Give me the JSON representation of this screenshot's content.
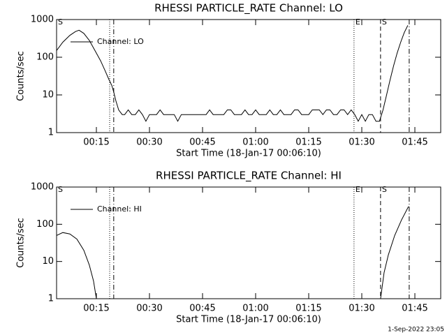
{
  "chart_data": [
    {
      "type": "line",
      "title": "RHESSI PARTICLE_RATE Channel: LO",
      "xlabel": "Start Time (18-Jan-17 00:06:10)",
      "ylabel": "Counts/sec",
      "log_y": true,
      "xlim": [
        3.75,
        112.3
      ],
      "ylim": [
        1,
        1000
      ],
      "yticks": [
        1,
        10,
        100,
        1000
      ],
      "xticks": [
        {
          "value": 15,
          "label": "00:15"
        },
        {
          "value": 30,
          "label": "00:30"
        },
        {
          "value": 45,
          "label": "00:45"
        },
        {
          "value": 60,
          "label": "01:00"
        },
        {
          "value": 75,
          "label": "01:15"
        },
        {
          "value": 90,
          "label": "01:30"
        },
        {
          "value": 105,
          "label": "01:45"
        }
      ],
      "legend": "upper left",
      "series": [
        {
          "name": "Channel: LO",
          "color": "#000000",
          "x": [
            3.75,
            5.5,
            7.5,
            9.1,
            10.1,
            11.45,
            13,
            14.6,
            16.2,
            17.4,
            18.6,
            19.35,
            19.9,
            20.5,
            21.3,
            22.3,
            23,
            24,
            25,
            26,
            27,
            28,
            29,
            30,
            31,
            32,
            33,
            34,
            35,
            36,
            37,
            38,
            39,
            40,
            41,
            42,
            43,
            44,
            45,
            46,
            47,
            48,
            49,
            50,
            51,
            52,
            53,
            54,
            55,
            56,
            57,
            58,
            59,
            60,
            61,
            62,
            63,
            64,
            65,
            66,
            67,
            68,
            69,
            70,
            71,
            72,
            73,
            74,
            75,
            76,
            77,
            78,
            79,
            80,
            81,
            82,
            83,
            84,
            85,
            86,
            87,
            88,
            89,
            90,
            91,
            92,
            93,
            94,
            95,
            96,
            97,
            98,
            99,
            100,
            101,
            102,
            103
          ],
          "values": [
            150,
            250,
            380,
            480,
            520,
            430,
            280,
            150,
            80,
            45,
            25,
            18,
            12,
            7,
            4,
            3,
            3,
            4,
            3,
            3,
            4,
            3,
            2,
            3,
            3,
            3,
            4,
            3,
            3,
            3,
            3,
            2,
            3,
            3,
            3,
            3,
            3,
            3,
            3,
            3,
            4,
            3,
            3,
            3,
            3,
            4,
            4,
            3,
            3,
            3,
            4,
            3,
            3,
            4,
            3,
            3,
            3,
            4,
            3,
            3,
            4,
            3,
            3,
            3,
            4,
            4,
            3,
            3,
            3,
            4,
            4,
            4,
            3,
            4,
            4,
            3,
            3,
            4,
            4,
            3,
            4,
            3,
            2,
            3,
            2,
            3,
            3,
            2,
            2,
            4,
            10,
            25,
            60,
            130,
            250,
            450,
            700
          ]
        }
      ],
      "vlines": [
        {
          "x": 3.75,
          "style": "solid",
          "label": "S"
        },
        {
          "x": 18.75,
          "style": "dotted"
        },
        {
          "x": 19.9,
          "style": "dashdot"
        },
        {
          "x": 87.8,
          "style": "dotted",
          "label": "E"
        },
        {
          "x": 95.3,
          "style": "dashed",
          "label": "S"
        },
        {
          "x": 103.4,
          "style": "dashdot"
        }
      ]
    },
    {
      "type": "line",
      "title": "RHESSI PARTICLE_RATE Channel: HI",
      "xlabel": "Start Time (18-Jan-17 00:06:10)",
      "ylabel": "Counts/sec",
      "log_y": true,
      "xlim": [
        3.75,
        112.3
      ],
      "ylim": [
        1,
        1000
      ],
      "yticks": [
        1,
        10,
        100,
        1000
      ],
      "xticks": [
        {
          "value": 15,
          "label": "00:15"
        },
        {
          "value": 30,
          "label": "00:30"
        },
        {
          "value": 45,
          "label": "00:45"
        },
        {
          "value": 60,
          "label": "01:00"
        },
        {
          "value": 75,
          "label": "01:15"
        },
        {
          "value": 90,
          "label": "01:30"
        },
        {
          "value": 105,
          "label": "01:45"
        }
      ],
      "legend": "upper left",
      "series": [
        {
          "name": "Channel: HI",
          "color": "#000000",
          "x": [
            3.75,
            5.5,
            7.5,
            9.5,
            11.45,
            13,
            14.2,
            15,
            50,
            95.3,
            96.3,
            97.5,
            99.3,
            101.2,
            103.2
          ],
          "values": [
            50,
            60,
            55,
            40,
            20,
            8,
            3,
            1,
            null,
            1,
            5,
            15,
            50,
            130,
            300
          ]
        }
      ],
      "vlines": [
        {
          "x": 3.75,
          "style": "solid",
          "label": "S"
        },
        {
          "x": 18.75,
          "style": "dotted"
        },
        {
          "x": 19.9,
          "style": "dashdot"
        },
        {
          "x": 87.8,
          "style": "dotted",
          "label": "E"
        },
        {
          "x": 95.3,
          "style": "dashed",
          "label": "S"
        },
        {
          "x": 103.4,
          "style": "dashdot"
        }
      ]
    }
  ],
  "footer": "1-Sep-2022 23:05"
}
